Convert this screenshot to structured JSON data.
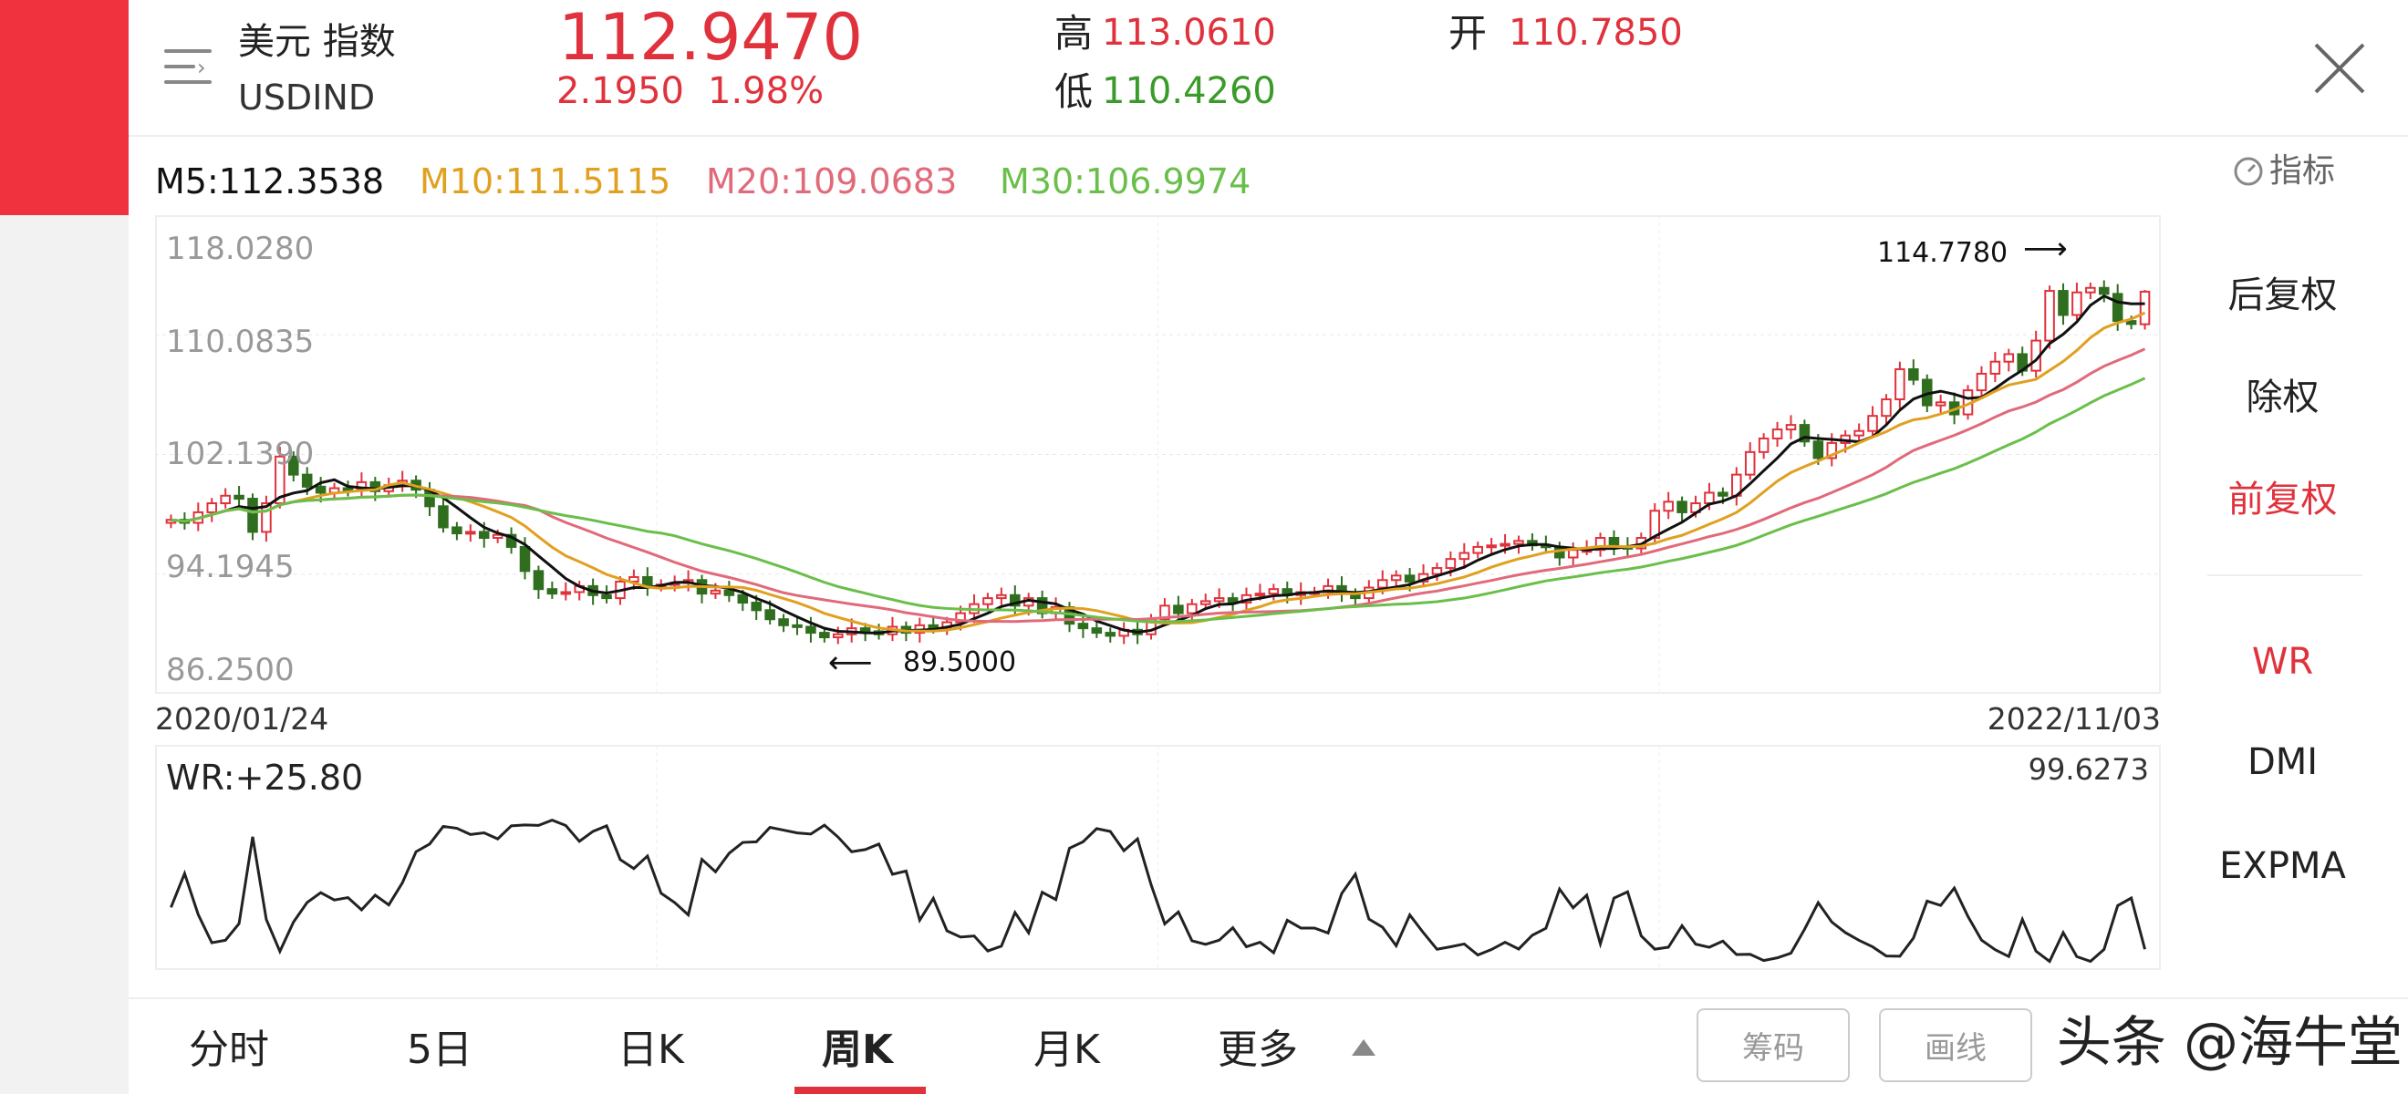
{
  "header": {
    "name": "美元 指数",
    "code": "USDIND",
    "price": "112.9470",
    "change": "2.1950",
    "change_pct": "1.98%",
    "high_label": "高",
    "high": "113.0610",
    "low_label": "低",
    "low": "110.4260",
    "open_label": "开",
    "open": "110.7850",
    "close_icon": "close-x-icon",
    "menu_icon": "list-menu-icon"
  },
  "ma_legend": {
    "m5": "M5:112.3538",
    "m10": "M10:111.5115",
    "m20": "M20:109.0683",
    "m30": "M30:106.9974",
    "indicator_label": "指标"
  },
  "colors": {
    "up": "#e0323c",
    "down": "#2f6e1e",
    "m5": "#111111",
    "m10": "#e0a020",
    "m20": "#e06a7a",
    "m30": "#6abf4a",
    "accent": "#e0323c"
  },
  "chart_data": {
    "type": "candlestick",
    "period": "weekly",
    "y_ticks": [
      "118.0280",
      "110.0835",
      "102.1390",
      "94.1945",
      "86.2500"
    ],
    "ylim": [
      86.25,
      118.028
    ],
    "start_date": "2020/01/24",
    "end_date": "2022/11/03",
    "max_annotation": "114.7780",
    "min_annotation": "89.5000",
    "last_bar": {
      "open": 110.785,
      "high": 113.061,
      "low": 110.426,
      "close": 112.947
    },
    "close": [
      97.8,
      97.6,
      98.3,
      98.9,
      99.4,
      99.2,
      97.0,
      98.9,
      102.0,
      100.8,
      100.0,
      99.6,
      99.9,
      99.8,
      100.3,
      99.7,
      100.1,
      100.4,
      99.8,
      98.7,
      97.3,
      96.9,
      97.0,
      96.6,
      96.8,
      96.0,
      94.4,
      93.2,
      92.9,
      93.0,
      93.4,
      92.8,
      92.6,
      93.7,
      94.0,
      93.4,
      93.5,
      93.6,
      93.8,
      92.9,
      93.1,
      92.8,
      92.3,
      91.8,
      91.2,
      90.8,
      90.7,
      90.3,
      90.0,
      90.2,
      90.6,
      90.4,
      90.2,
      90.7,
      90.3,
      90.8,
      90.6,
      91.0,
      91.6,
      92.2,
      92.6,
      92.8,
      92.1,
      92.6,
      91.6,
      92.0,
      90.9,
      90.6,
      90.3,
      90.1,
      90.5,
      90.2,
      91.2,
      92.1,
      91.6,
      92.2,
      92.4,
      92.6,
      92.3,
      92.8,
      92.9,
      93.2,
      92.8,
      93.0,
      93.0,
      93.4,
      92.9,
      92.6,
      93.3,
      93.8,
      94.1,
      93.7,
      94.2,
      94.6,
      95.2,
      95.6,
      96.0,
      96.1,
      96.2,
      96.4,
      96.1,
      96.0,
      95.3,
      95.8,
      95.8,
      96.6,
      96.0,
      95.9,
      96.6,
      98.4,
      99.0,
      98.3,
      98.9,
      99.6,
      99.4,
      100.8,
      102.3,
      103.2,
      103.8,
      104.1,
      103.0,
      101.9,
      102.9,
      103.4,
      103.7,
      104.7,
      105.8,
      107.8,
      107.1,
      105.4,
      105.6,
      104.8,
      106.4,
      107.5,
      108.3,
      108.8,
      107.7,
      109.7,
      113.0,
      111.4,
      112.9,
      113.2,
      112.8,
      111.0,
      110.8,
      112.947
    ],
    "wr": {
      "label": "WR:+25.80",
      "top_value": "99.6273"
    }
  },
  "right_panel": {
    "items": [
      {
        "label": "后复权",
        "active": false
      },
      {
        "label": "除权",
        "active": false
      },
      {
        "label": "前复权",
        "active": true
      },
      {
        "label": "WR",
        "active": true
      },
      {
        "label": "DMI",
        "active": false
      },
      {
        "label": "EXPMA",
        "active": false
      }
    ]
  },
  "tabs": [
    {
      "label": "分时"
    },
    {
      "label": "5日"
    },
    {
      "label": "日K"
    },
    {
      "label": "周K",
      "active": true
    },
    {
      "label": "月K"
    },
    {
      "label": "更多"
    }
  ],
  "more_icon": "triangle-up-icon",
  "buttons": {
    "chips": "筹码",
    "draw": "画线"
  },
  "watermark": "头条 @海牛堂"
}
